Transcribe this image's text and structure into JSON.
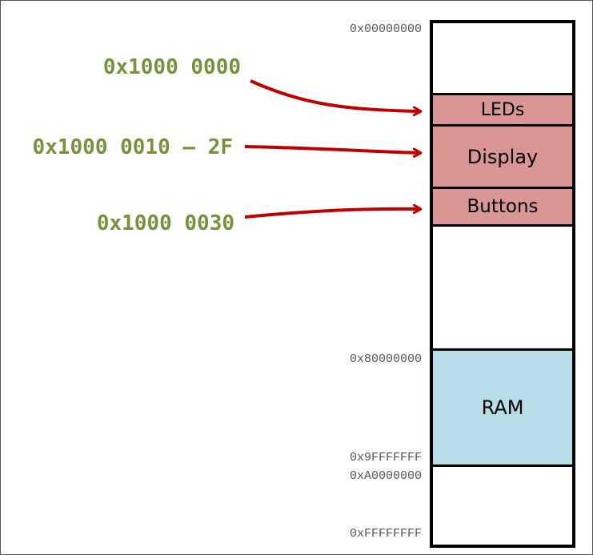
{
  "addresses": {
    "start": "0x00000000",
    "ram_start": "0x80000000",
    "ram_end": "0x9FFFFFFF",
    "after_ram": "0xA0000000",
    "end": "0xFFFFFFFF"
  },
  "regions": {
    "leds": "LEDs",
    "display": "Display",
    "buttons": "Buttons",
    "ram": "RAM"
  },
  "callouts": {
    "leds": "0x1000 0000",
    "display": "0x1000 0010 – 2F",
    "buttons": "0x1000 0030"
  },
  "colors": {
    "io_region": "#d99694",
    "ram_region": "#b7dde8",
    "callout_text": "#76923c",
    "arrow": "#c00000"
  }
}
